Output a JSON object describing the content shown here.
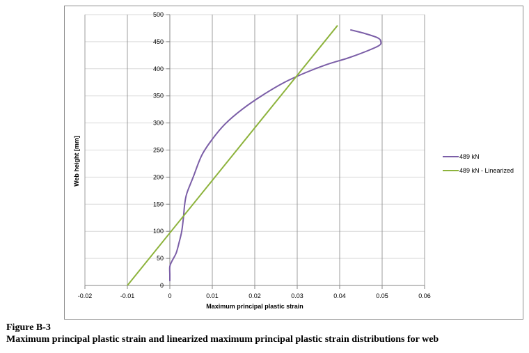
{
  "chart_data": {
    "type": "line",
    "xlabel": "Maximum principal plastic strain",
    "ylabel": "Web height [mm]",
    "xlim": [
      -0.02,
      0.06
    ],
    "ylim": [
      0,
      500
    ],
    "x_ticks": [
      "-0.02",
      "-0.01",
      "0",
      "0.01",
      "0.02",
      "0.03",
      "0.04",
      "0.05",
      "0.06"
    ],
    "y_ticks": [
      "0",
      "50",
      "100",
      "150",
      "200",
      "250",
      "300",
      "350",
      "400",
      "450",
      "500"
    ],
    "grid": true,
    "legend_position": "right",
    "series": [
      {
        "name": "489 kN",
        "color": "#7b5ea7",
        "points": [
          [
            0,
            8
          ],
          [
            0,
            20
          ],
          [
            0,
            35
          ],
          [
            0.0005,
            45
          ],
          [
            0.0015,
            60
          ],
          [
            0.0022,
            80
          ],
          [
            0.0028,
            100
          ],
          [
            0.0032,
            125
          ],
          [
            0.0035,
            150
          ],
          [
            0.004,
            170
          ],
          [
            0.0055,
            200
          ],
          [
            0.0075,
            240
          ],
          [
            0.01,
            270
          ],
          [
            0.013,
            298
          ],
          [
            0.017,
            325
          ],
          [
            0.022,
            352
          ],
          [
            0.027,
            375
          ],
          [
            0.032,
            393
          ],
          [
            0.037,
            408
          ],
          [
            0.042,
            420
          ],
          [
            0.0465,
            433
          ],
          [
            0.0493,
            443
          ],
          [
            0.0497,
            450
          ],
          [
            0.049,
            457
          ],
          [
            0.046,
            465
          ],
          [
            0.0425,
            472
          ]
        ]
      },
      {
        "name": "489 kN - Linearized",
        "color": "#8db33c",
        "points": [
          [
            -0.01,
            0
          ],
          [
            0.0395,
            480
          ]
        ]
      }
    ]
  },
  "caption": {
    "figure_label": "Figure B-3",
    "text": "Maximum principal plastic strain and linearized maximum principal plastic strain distributions for web"
  }
}
